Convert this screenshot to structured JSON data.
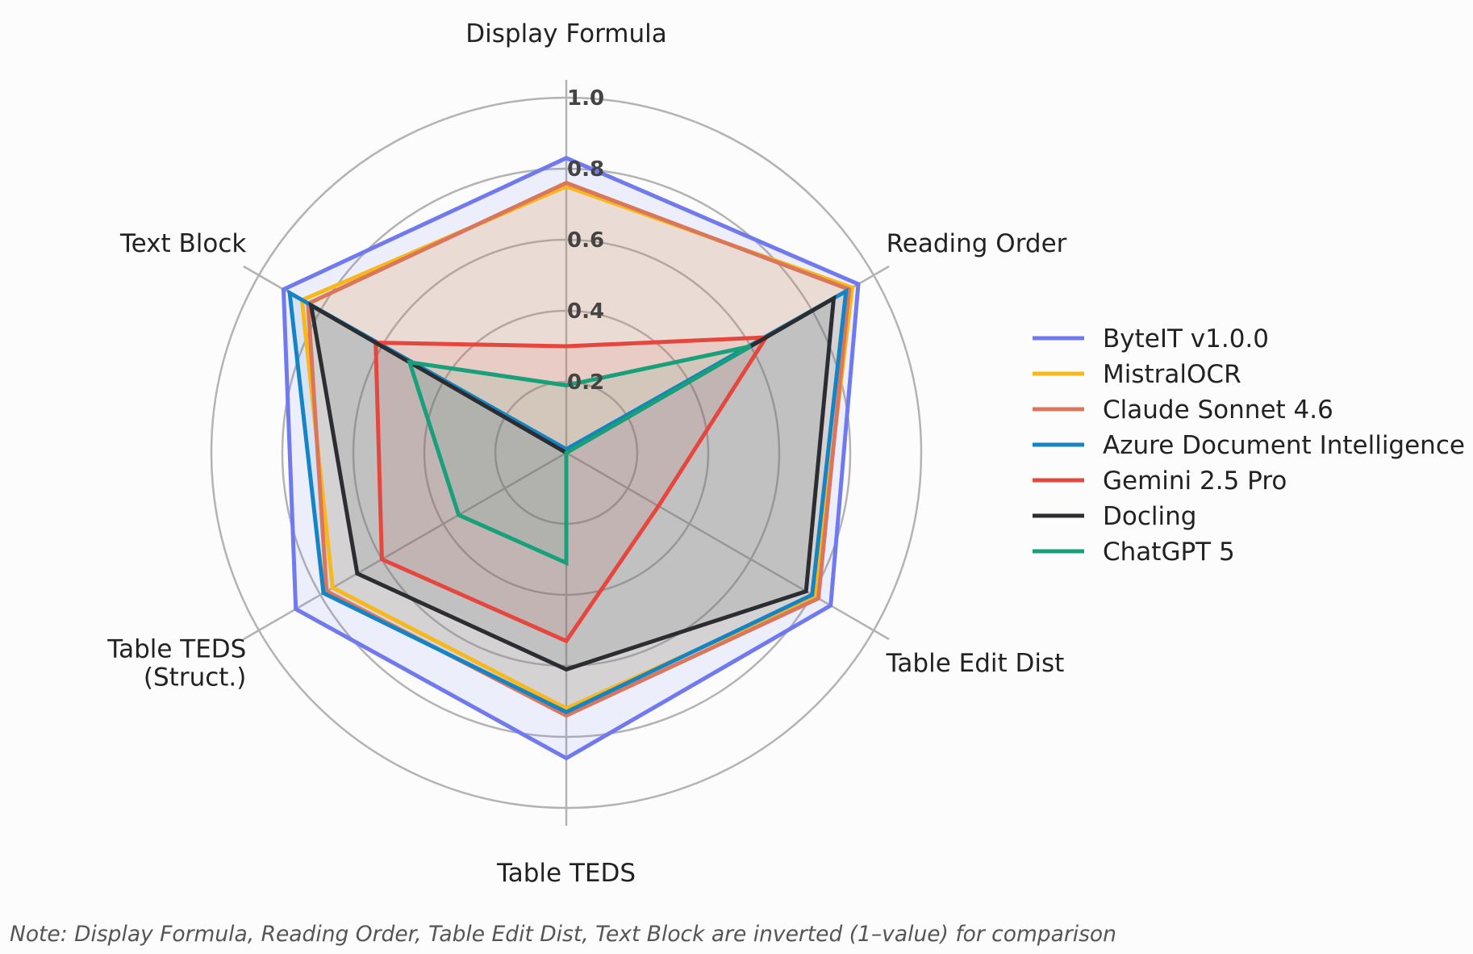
{
  "chart_data": {
    "type": "radar",
    "axes": [
      "Display Formula",
      "Reading Order",
      "Table Edit Dist",
      "Table TEDS",
      "Table TEDS\n(Struct.)",
      "Text Block"
    ],
    "rlim": [
      0,
      1.0
    ],
    "ticks": [
      0.2,
      0.4,
      0.6,
      0.8,
      1.0
    ],
    "tick_labels": [
      "0.2",
      "0.4",
      "0.6",
      "0.8",
      "1.0"
    ],
    "grid": true,
    "legend_position": "right",
    "note": "Note: Display Formula, Reading Order, Table Edit Dist, Text Block are inverted (1–value) for comparison",
    "series": [
      {
        "name": "ByteIT v1.0.0",
        "color": "#7079ee",
        "values": [
          0.83,
          0.95,
          0.86,
          0.86,
          0.88,
          0.92
        ]
      },
      {
        "name": "MistralOCR",
        "color": "#f8b81a",
        "values": [
          0.75,
          0.93,
          0.81,
          0.72,
          0.76,
          0.86
        ]
      },
      {
        "name": "Claude Sonnet 4.6",
        "color": "#d9775d",
        "values": [
          0.76,
          0.92,
          0.82,
          0.74,
          0.78,
          0.84
        ]
      },
      {
        "name": "Azure Document Intelligence",
        "color": "#1584c4",
        "values": [
          0.01,
          0.91,
          0.8,
          0.73,
          0.79,
          0.9
        ]
      },
      {
        "name": "Gemini 2.5 Pro",
        "color": "#e5473f",
        "values": [
          0.3,
          0.65,
          0.3,
          0.53,
          0.6,
          0.62
        ]
      },
      {
        "name": "Docling",
        "color": "#2b2d30",
        "values": [
          0.0,
          0.87,
          0.78,
          0.61,
          0.68,
          0.83
        ]
      },
      {
        "name": "ChatGPT 5",
        "color": "#17a07a",
        "values": [
          0.19,
          0.6,
          0.0,
          0.31,
          0.35,
          0.51
        ]
      }
    ]
  }
}
